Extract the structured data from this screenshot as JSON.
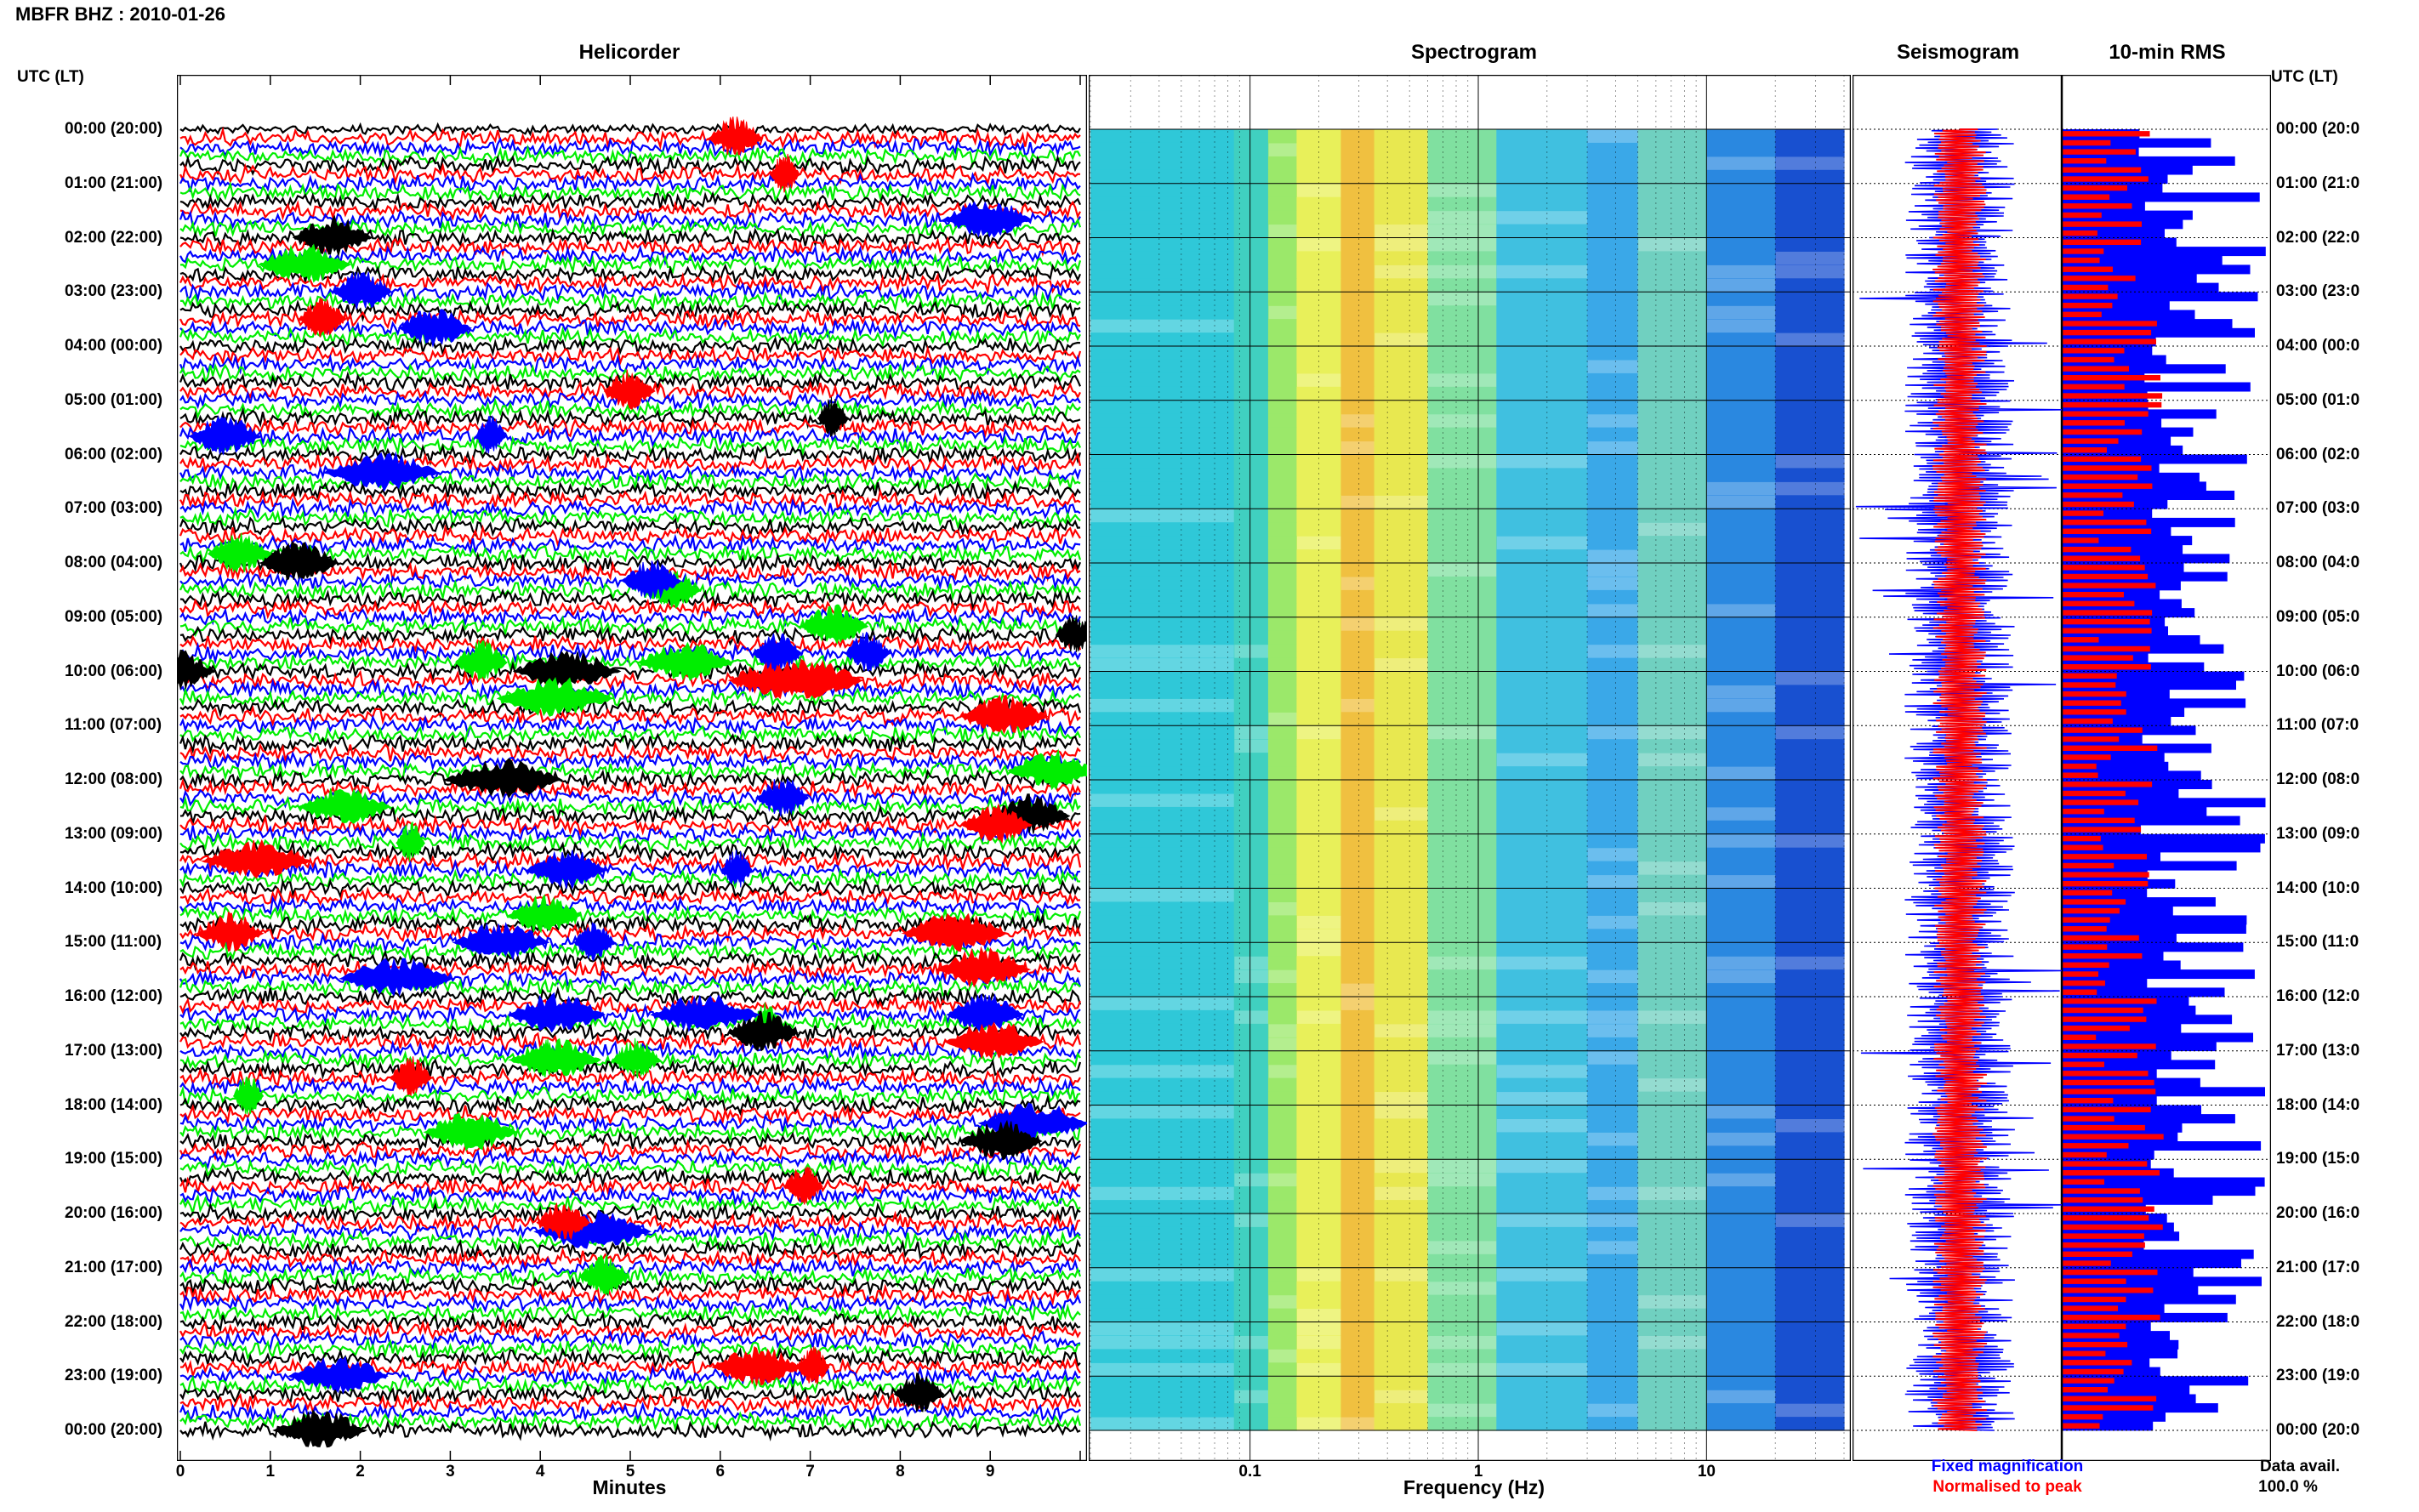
{
  "title": "MBFR BHZ : 2010-01-26",
  "time_axis_label": "UTC (LT)",
  "panels": {
    "helicorder": "Helicorder",
    "spectrogram": "Spectrogram",
    "seismogram": "Seismogram",
    "rms": "10-min RMS"
  },
  "time_labels": [
    "00:00 (20:00)",
    "01:00 (21:00)",
    "02:00 (22:00)",
    "03:00 (23:00)",
    "04:00 (00:00)",
    "05:00 (01:00)",
    "06:00 (02:00)",
    "07:00 (03:00)",
    "08:00 (04:00)",
    "09:00 (05:00)",
    "10:00 (06:00)",
    "11:00 (07:00)",
    "12:00 (08:00)",
    "13:00 (09:00)",
    "14:00 (10:00)",
    "15:00 (11:00)",
    "16:00 (12:00)",
    "17:00 (13:00)",
    "18:00 (14:00)",
    "19:00 (15:00)",
    "20:00 (16:00)",
    "21:00 (17:00)",
    "22:00 (18:00)",
    "23:00 (19:00)",
    "00:00 (20:00)"
  ],
  "right_time_labels": [
    "00:00 (20:0",
    "01:00 (21:0",
    "02:00 (22:0",
    "03:00 (23:0",
    "04:00 (00:0",
    "05:00 (01:0",
    "06:00 (02:0",
    "07:00 (03:0",
    "08:00 (04:0",
    "09:00 (05:0",
    "10:00 (06:0",
    "11:00 (07:0",
    "12:00 (08:0",
    "13:00 (09:0",
    "14:00 (10:0",
    "15:00 (11:0",
    "16:00 (12:0",
    "17:00 (13:0",
    "18:00 (14:0",
    "19:00 (15:0",
    "20:00 (16:0",
    "21:00 (17:0",
    "22:00 (18:0",
    "23:00 (19:0",
    "00:00 (20:0"
  ],
  "chart_data": [
    {
      "type": "line",
      "name": "helicorder",
      "xlabel": "Minutes",
      "xticks": [
        "0",
        "1",
        "2",
        "3",
        "4",
        "5",
        "6",
        "7",
        "8",
        "9"
      ],
      "xlim": [
        0,
        10
      ],
      "trace_colors": [
        "#000000",
        "#ff0000",
        "#0000ff",
        "#00ee00"
      ],
      "rows_per_hour": 6,
      "hours": 24
    },
    {
      "type": "heatmap",
      "name": "spectrogram",
      "xlabel": "Frequency (Hz)",
      "xscale": "log",
      "xticks": [
        "0.1",
        "1",
        "10"
      ],
      "xlim": [
        0.02,
        40
      ]
    },
    {
      "type": "line",
      "name": "seismogram",
      "legend": [
        "Fixed magnification",
        "Normalised to peak"
      ],
      "colors": [
        "#0000ff",
        "#ff0000"
      ]
    },
    {
      "type": "bar",
      "name": "10-min RMS",
      "colors": [
        "#0000ff",
        "#ff0000"
      ],
      "footer_label": "Data avail.",
      "footer_value": "100.0 %"
    }
  ]
}
